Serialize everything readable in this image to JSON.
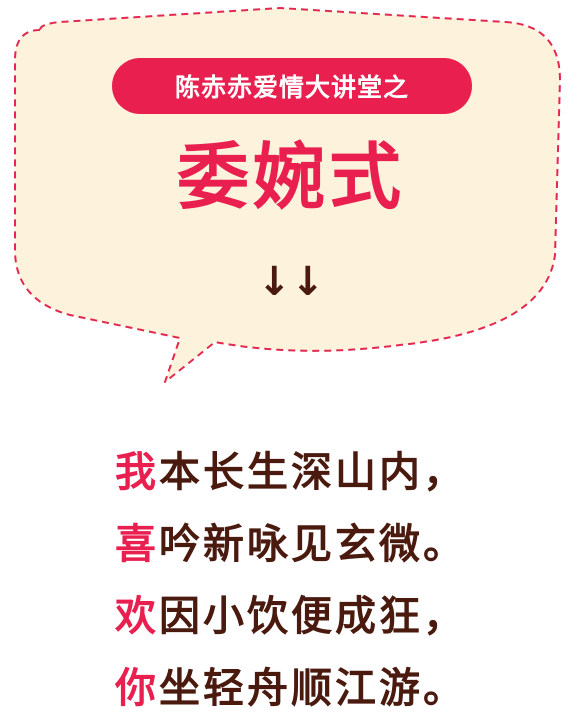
{
  "colors": {
    "bubble_fill": "#fdf3dc",
    "dash": "#e3284f",
    "accent": "#e81f4f",
    "text_dark": "#4a1a0e"
  },
  "header": {
    "pill_text": "陈赤赤爱情大讲堂之",
    "title": "委婉式",
    "arrows": "↓↓"
  },
  "poem": {
    "lines": [
      {
        "first": "我",
        "rest": "本长生深山内，"
      },
      {
        "first": "喜",
        "rest": "吟新咏见玄微。"
      },
      {
        "first": "欢",
        "rest": "因小饮便成狂，"
      },
      {
        "first": "你",
        "rest": "坐轻舟顺江游。"
      }
    ]
  }
}
